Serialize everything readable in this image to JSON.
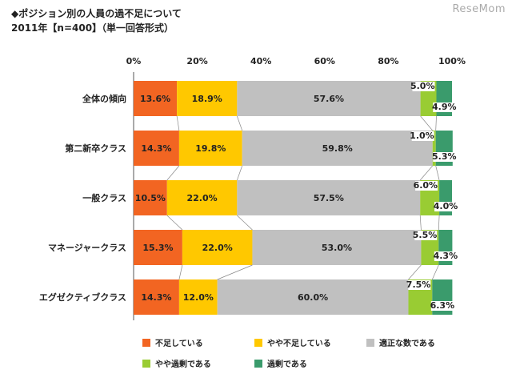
{
  "header": {
    "title": "◆ポジション別の人員の過不足について",
    "subtitle": "2011年【n=400】（単一回答形式）",
    "logo": "ReseMom"
  },
  "colors": [
    "#f26522",
    "#ffc800",
    "#c0c0c0",
    "#99cc33",
    "#3a9b6c"
  ],
  "chart_data": {
    "type": "bar",
    "orientation": "horizontal",
    "stacked": "percent",
    "categories": [
      "全体の傾向",
      "第二新卒クラス",
      "一般クラス",
      "マネージャークラス",
      "エグゼクティブクラス"
    ],
    "series": [
      {
        "name": "不足している",
        "values": [
          13.6,
          14.3,
          10.5,
          15.3,
          14.3
        ],
        "labels": [
          "13.6%",
          "14.3%",
          "10.5%",
          "15.3%",
          "14.3%"
        ]
      },
      {
        "name": "やや不足している",
        "values": [
          18.9,
          19.8,
          22.0,
          22.0,
          12.0
        ],
        "labels": [
          "18.9%",
          "19.8%",
          "22.0%",
          "22.0%",
          "12.0%"
        ]
      },
      {
        "name": "適正な数である",
        "values": [
          57.6,
          59.8,
          57.5,
          53.0,
          60.0
        ],
        "labels": [
          "57.6%",
          "59.8%",
          "57.5%",
          "53.0%",
          "60.0%"
        ]
      },
      {
        "name": "やや過剰である",
        "values": [
          5.0,
          1.0,
          6.0,
          5.5,
          7.5
        ],
        "labels": [
          "5.0%",
          "1.0%",
          "6.0%",
          "5.5%",
          "7.5%"
        ]
      },
      {
        "name": "過剰である",
        "values": [
          4.9,
          5.3,
          4.0,
          4.3,
          6.3
        ],
        "labels": [
          "4.9%",
          "5.3%",
          "4.0%",
          "4.3%",
          "6.3%"
        ]
      }
    ],
    "x_ticks": [
      "0%",
      "20%",
      "40%",
      "60%",
      "80%",
      "100%"
    ],
    "xlim": [
      0,
      100
    ],
    "legend_position": "bottom"
  }
}
